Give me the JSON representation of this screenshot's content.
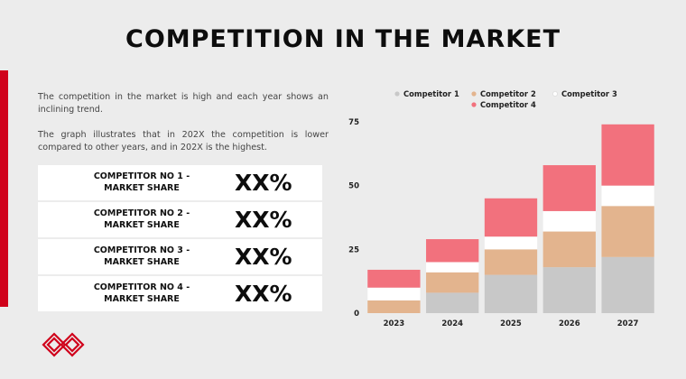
{
  "slide": {
    "title": "COMPETITION IN THE MARKET",
    "paragraph1": "The competition in the market is high and each year shows an inclining trend.",
    "paragraph2": "The graph illustrates that in 202X the competition is lower compared to other years, and in 202X is the highest.",
    "shares": [
      {
        "label": "COMPETITOR NO 1 - MARKET SHARE",
        "value": "XX%"
      },
      {
        "label": "COMPETITOR NO 2 - MARKET SHARE",
        "value": "XX%"
      },
      {
        "label": "COMPETITOR NO 3 - MARKET SHARE",
        "value": "XX%"
      },
      {
        "label": "COMPETITOR NO 4 - MARKET SHARE",
        "value": "XX%"
      }
    ],
    "logo_icon": "interlocking-diamond-logo-icon",
    "colors": {
      "accent": "#d0021b"
    }
  },
  "chart_data": {
    "type": "bar",
    "stacked": true,
    "categories": [
      "2023",
      "2024",
      "2025",
      "2026",
      "2027"
    ],
    "series": [
      {
        "name": "Competitor 1",
        "color": "#c8c8c8",
        "values": [
          0,
          8,
          15,
          18,
          22
        ]
      },
      {
        "name": "Competitor 2",
        "color": "#e3b48e",
        "values": [
          5,
          8,
          10,
          14,
          20
        ]
      },
      {
        "name": "Competitor 3",
        "color": "#ffffff",
        "values": [
          5,
          4,
          5,
          8,
          8
        ]
      },
      {
        "name": "Competitor 4",
        "color": "#f2717d",
        "values": [
          7,
          9,
          15,
          18,
          24
        ]
      }
    ],
    "ylim": [
      0,
      75
    ],
    "yticks": [
      0,
      25,
      50,
      75
    ],
    "grid": false,
    "legend": "top",
    "title": "",
    "xlabel": "",
    "ylabel": ""
  }
}
